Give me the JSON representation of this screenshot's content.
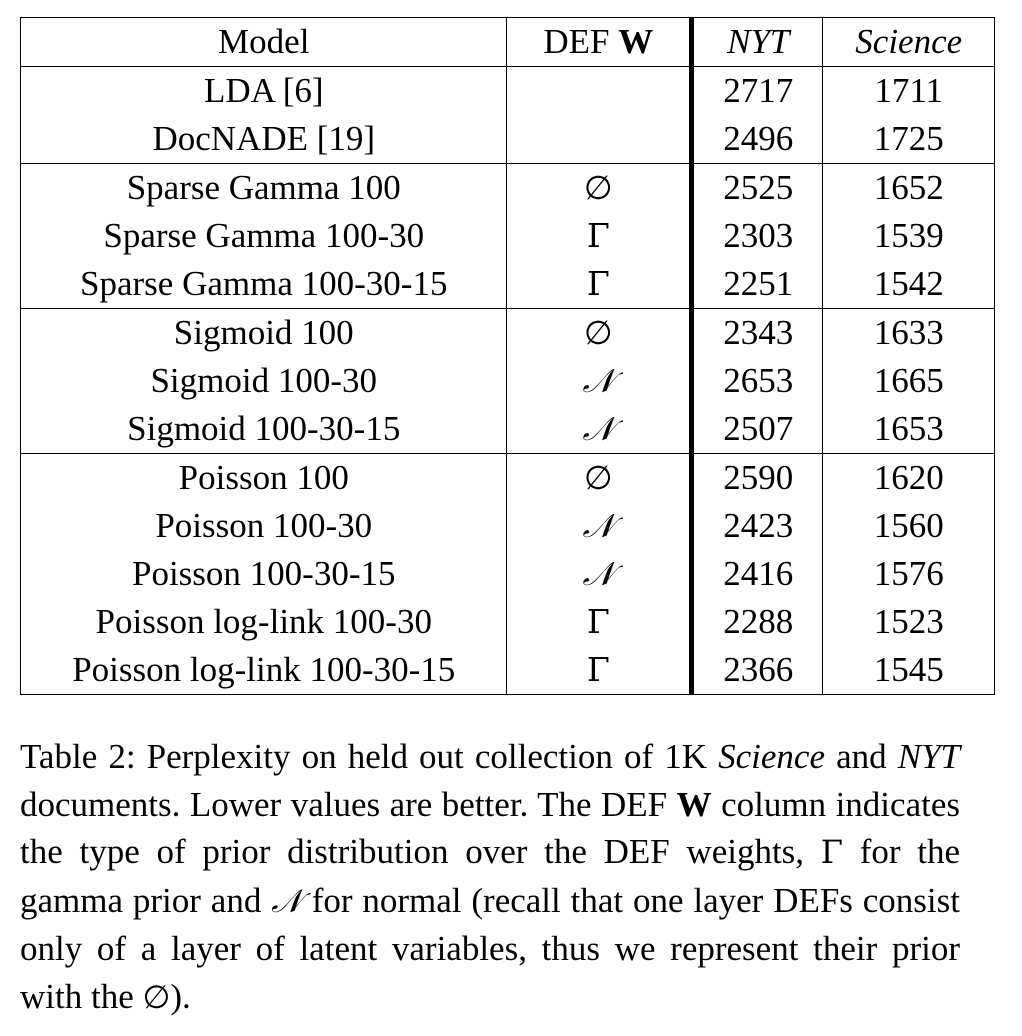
{
  "table": {
    "headers": {
      "model": "Model",
      "def_prefix": "DEF ",
      "def_bold": "W",
      "nyt": "NYT",
      "science": "Science"
    },
    "groups": [
      [
        {
          "model": "LDA [6]",
          "prior": "",
          "nyt": "2717",
          "science": "1711"
        },
        {
          "model": "DocNADE [19]",
          "prior": "",
          "nyt": "2496",
          "science": "1725"
        }
      ],
      [
        {
          "model": "Sparse Gamma 100",
          "prior": "∅",
          "nyt": "2525",
          "science": "1652"
        },
        {
          "model": "Sparse Gamma 100-30",
          "prior": "Γ",
          "nyt": "2303",
          "science": "1539"
        },
        {
          "model": "Sparse Gamma 100-30-15",
          "prior": "Γ",
          "nyt": "2251",
          "science": "1542"
        }
      ],
      [
        {
          "model": "Sigmoid 100",
          "prior": "∅",
          "nyt": "2343",
          "science": "1633"
        },
        {
          "model": "Sigmoid 100-30",
          "prior": "𝒩",
          "nyt": "2653",
          "science": "1665"
        },
        {
          "model": "Sigmoid 100-30-15",
          "prior": "𝒩",
          "nyt": "2507",
          "science": "1653"
        }
      ],
      [
        {
          "model": "Poisson 100",
          "prior": "∅",
          "nyt": "2590",
          "science": "1620"
        },
        {
          "model": "Poisson 100-30",
          "prior": "𝒩",
          "nyt": "2423",
          "science": "1560"
        },
        {
          "model": "Poisson 100-30-15",
          "prior": "𝒩",
          "nyt": "2416",
          "science": "1576"
        },
        {
          "model": "Poisson log-link 100-30",
          "prior": "Γ",
          "nyt": "2288",
          "science": "1523"
        },
        {
          "model": "Poisson log-link 100-30-15",
          "prior": "Γ",
          "nyt": "2366",
          "science": "1545"
        }
      ]
    ]
  },
  "caption": {
    "t1": "Table 2: Perplexity on held out collection of 1K ",
    "t2": "Science",
    "t3": " and ",
    "t4": "NYT",
    "t5": " documents.  Lower values are better.  The DEF ",
    "t6": "W",
    "t7": " column indicates the type of prior distribution over the DEF weights, ",
    "t8": "Γ",
    "t9": " for the gamma prior and ",
    "t10": "𝒩",
    "t11": " for normal (recall that one layer DEFs consist only of a layer of latent variables, thus we represent their prior with the ",
    "t12": "∅",
    "t13": ")."
  }
}
